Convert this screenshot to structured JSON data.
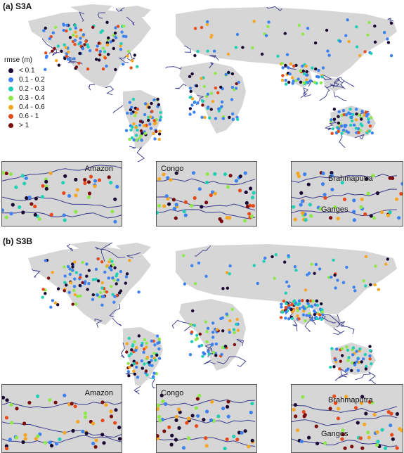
{
  "panels": [
    {
      "id": "a",
      "title": "(a) S3A"
    },
    {
      "id": "b",
      "title": "(b) S3B"
    }
  ],
  "legend": {
    "title": "rmse (m)",
    "items": [
      {
        "label": "< 0.1",
        "color": "#1a0a33"
      },
      {
        "label": "0.1 - 0.2",
        "color": "#3d82f0"
      },
      {
        "label": "0.2 - 0.3",
        "color": "#1fd0b5"
      },
      {
        "label": "0.3 - 0.4",
        "color": "#8ee84a"
      },
      {
        "label": "0.4 - 0.6",
        "color": "#f5a623"
      },
      {
        "label": "0.6 - 1",
        "color": "#e84a1a"
      },
      {
        "label": "> 1",
        "color": "#7a0c0c"
      }
    ]
  },
  "insets": {
    "amazon": "Amazon",
    "congo": "Congo",
    "brahmaputra": "Brahmaputra",
    "ganges": "Ganges"
  },
  "colors": {
    "land": "#d6d6d6",
    "river": "#3a3a8c",
    "water": "#ffffff"
  }
}
